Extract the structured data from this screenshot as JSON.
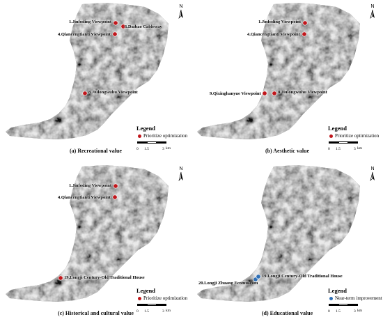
{
  "north_label": "N",
  "colors": {
    "priority": "#c0171c",
    "near_term": "#2f6fb5"
  },
  "scale": {
    "t0": "0",
    "t1": "1.5",
    "t2": "3",
    "unit": "km"
  },
  "legend_title": "Legend",
  "panels": [
    {
      "caption": "(a) Recreational value",
      "legend_item": "Prioritize optimization",
      "labels": [
        "1.Jinfoding Viewpoint",
        "6.Daibao Cableway",
        "4.Qiancengtianti Viewpoint",
        "8.Jiulongwuhu Viewpoint"
      ]
    },
    {
      "caption": "(b) Aesthetic value",
      "legend_item": "Prioritize optimization",
      "labels": [
        "1.Jinfoding Viewpoint",
        "4.Qiancengtianti Viewpoint",
        "9.Qixinghanyue Viewpoint",
        "8.Jiulongwuhu Viewpoint"
      ]
    },
    {
      "caption": "(c) Historical and cultural value",
      "legend_item": "Prioritize optimization",
      "labels": [
        "1.Jinfoding Viewpoint",
        "4.Qiancengtianti Viewpoint",
        "19.Longji Century-Old Traditional House"
      ]
    },
    {
      "caption": "(d) Educational value",
      "legend_item": "Near-term improvement",
      "labels": [
        "20.Longji Zhuang Ecomuseum",
        "19.Longji Century-Old Traditional House"
      ]
    }
  ]
}
